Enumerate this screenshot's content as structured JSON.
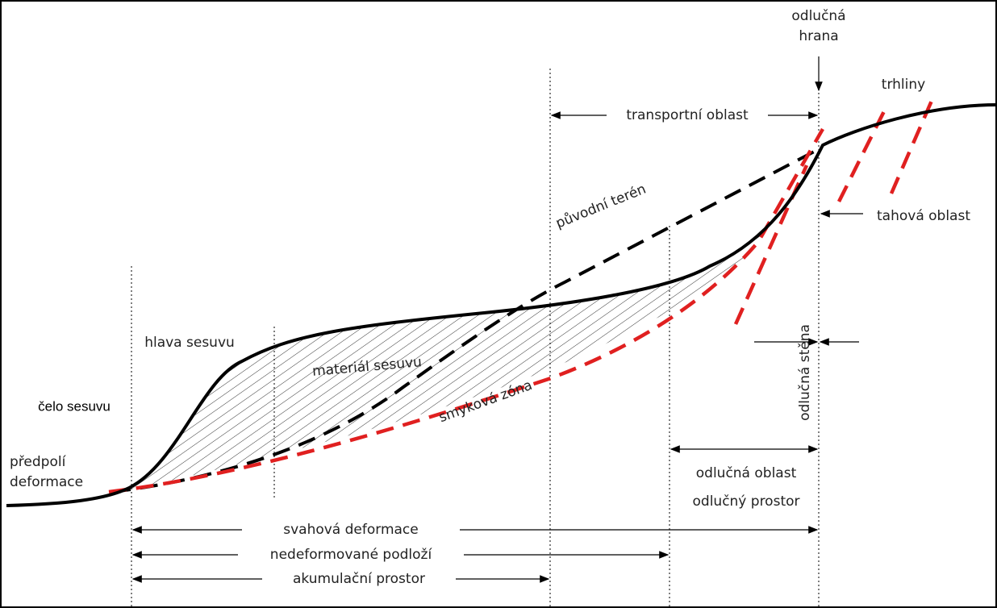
{
  "labels": {
    "edge": [
      "odlučná",
      "hrana"
    ],
    "cracks": "trhliny",
    "transport": "transportní oblast",
    "original_terrain": "původní terén",
    "tension": "tahová oblast",
    "head": "hlava sesuvu",
    "material": "materiál sesuvu",
    "scarp": "odlučná stěna",
    "front": "čelo sesuvu",
    "shear": "smyková zóna",
    "foreland": [
      "předpolí",
      "deformace"
    ],
    "detach_area": "odlučná oblast",
    "detach_space": "odlučný prostor",
    "slope_deformation": "svahová deformace",
    "bedrock": "nedeformované podloží",
    "accumulation": "akumulační prostor"
  }
}
